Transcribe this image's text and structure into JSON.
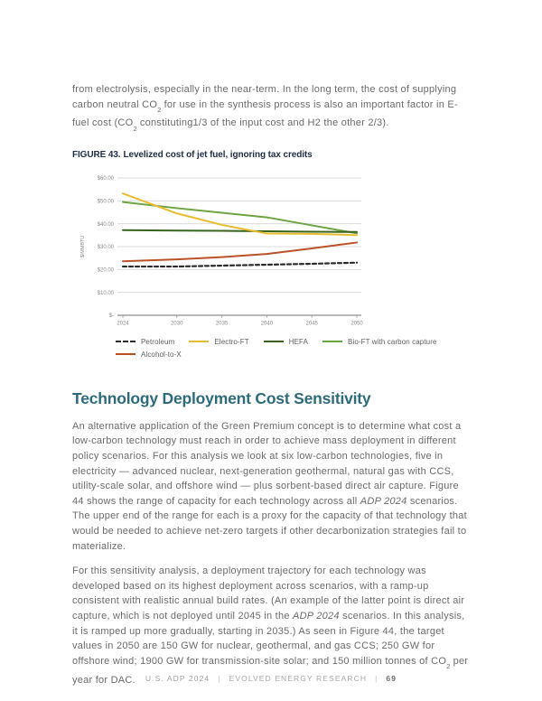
{
  "intro_paragraph": {
    "segments": [
      {
        "t": "from electrolysis, especially in the near-term. In the long term, the cost of supplying carbon neutral CO"
      },
      {
        "t": "2",
        "s": "sub"
      },
      {
        "t": " for use in the synthesis process is also an important factor in E-fuel cost (CO"
      },
      {
        "t": "2",
        "s": "sub"
      },
      {
        "t": " constituting1/3 of the input cost and H2 the other 2/3)."
      }
    ]
  },
  "figure": {
    "caption_label": "FIGURE 43.",
    "caption_text": "Levelized cost of jet fuel, ignoring tax credits"
  },
  "chart_data": {
    "type": "line",
    "title": "Levelized cost of jet fuel, ignoring tax credits",
    "x": [
      2024,
      2030,
      2035,
      2040,
      2045,
      2050
    ],
    "xtick_labels": [
      "2024",
      "2030",
      "2035",
      "2040",
      "2045",
      "2050"
    ],
    "ylabel": "$/MMBTU",
    "ylim": [
      0,
      60
    ],
    "ytick_values": [
      0,
      10,
      20,
      30,
      40,
      50,
      60
    ],
    "ytick_labels": [
      "$-",
      "$10.00",
      "$20.00",
      "$30.00",
      "$40.00",
      "$50.00",
      "$60.00"
    ],
    "grid": true,
    "legend_position": "bottom",
    "series": [
      {
        "name": "Petroleum",
        "color": "#2b2b2b",
        "dash": true,
        "values": [
          21.3,
          21.3,
          21.7,
          22.1,
          22.5,
          23.0
        ]
      },
      {
        "name": "Electro-FT",
        "color": "#e9bc2f",
        "dash": false,
        "values": [
          53.2,
          44.5,
          39.5,
          35.7,
          35.6,
          35.0
        ]
      },
      {
        "name": "HEFA",
        "color": "#38651e",
        "dash": false,
        "values": [
          37.2,
          37.0,
          36.9,
          36.7,
          36.5,
          36.4
        ]
      },
      {
        "name": "Bio-FT with carbon capture",
        "color": "#6ca53f",
        "dash": false,
        "values": [
          49.5,
          46.8,
          44.8,
          42.8,
          39.3,
          35.8
        ]
      },
      {
        "name": "Alcohol-to-X",
        "color": "#bc5127",
        "dash": false,
        "values": [
          23.6,
          24.4,
          25.4,
          26.8,
          29.2,
          31.8
        ]
      }
    ],
    "legend_rows": [
      [
        0,
        1,
        2,
        3
      ],
      [
        4
      ]
    ]
  },
  "section": {
    "heading": "Technology Deployment Cost Sensitivity",
    "paragraph1": {
      "segments": [
        {
          "t": "An alternative application of the Green Premium concept is to determine what cost a low-carbon technology must reach in order to achieve mass deployment in different policy scenarios. For this analysis we look at six low-carbon technologies, five in electricity — advanced nuclear, next-generation geothermal, natural gas with CCS, utility-scale solar, and offshore wind — plus sorbent-based direct air capture. Figure 44 shows the range of capacity for each technology across all "
        },
        {
          "t": "ADP 2024",
          "s": "i"
        },
        {
          "t": " scenarios. The upper end of the range for each is a proxy for the capacity of that technology that would be needed to achieve net-zero targets if other decarbonization strategies fail to materialize."
        }
      ]
    },
    "paragraph2": {
      "segments": [
        {
          "t": "For this sensitivity analysis, a deployment trajectory for each technology was developed based on its highest deployment across scenarios, with a ramp-up consistent with realistic annual build rates. (An example of the latter point is direct air capture, which is not deployed until 2045 in the "
        },
        {
          "t": "ADP 2024",
          "s": "i"
        },
        {
          "t": " scenarios. In this analysis, it is ramped up more gradually, starting in 2035.) As seen in Figure 44, the target values in 2050 are 150 GW for nuclear, geothermal, and gas CCS; 250 GW for offshore wind; 1900 GW for transmission-site solar; and 150 million tonnes of CO"
        },
        {
          "t": "2",
          "s": "sub"
        },
        {
          "t": " per year for DAC."
        }
      ]
    }
  },
  "footer": {
    "report": "U.S. ADP 2024",
    "separator": "|",
    "publisher": "EVOLVED ENERGY RESEARCH",
    "page_number": "69"
  },
  "colors": {
    "heading_teal": "#2e6b7a",
    "caption_navy": "#1f2d45",
    "body_gray": "#6b6b6b",
    "grid_gray": "#dcdcdc",
    "axis_gray": "#a0a0a0",
    "tick_label_gray": "#8a8a8a"
  }
}
